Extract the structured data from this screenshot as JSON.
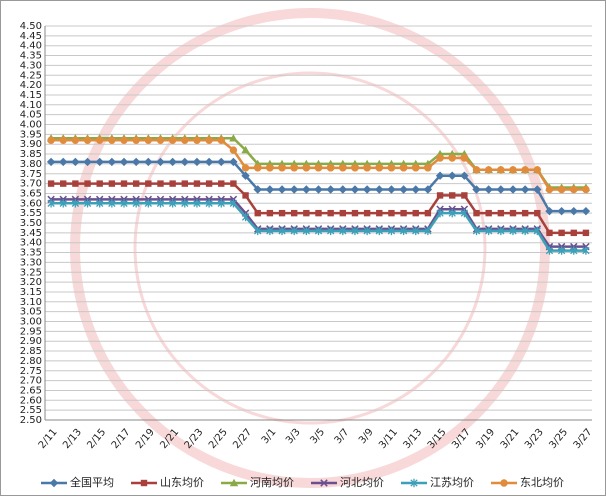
{
  "chart_data": {
    "type": "line",
    "categories": [
      "2/11",
      null,
      "2/13",
      null,
      "2/15",
      null,
      "2/17",
      null,
      "2/19",
      null,
      "2/21",
      null,
      "2/23",
      null,
      "2/25",
      null,
      "2/27",
      null,
      "3/1",
      null,
      "3/3",
      null,
      "3/5",
      null,
      "3/7",
      null,
      "3/9",
      null,
      "3/11",
      null,
      "3/13",
      null,
      "3/15",
      null,
      "3/17",
      null,
      "3/19",
      null,
      "3/21",
      null,
      "3/23",
      null,
      "3/25",
      null,
      "3/27"
    ],
    "series": [
      {
        "name": "全国平均",
        "color": "#4a78a8",
        "marker": "diamond",
        "values": [
          3.81,
          3.81,
          3.81,
          3.81,
          3.81,
          3.81,
          3.81,
          3.81,
          3.81,
          3.81,
          3.81,
          3.81,
          3.81,
          3.81,
          3.81,
          3.81,
          3.74,
          3.67,
          3.67,
          3.67,
          3.67,
          3.67,
          3.67,
          3.67,
          3.67,
          3.67,
          3.67,
          3.67,
          3.67,
          3.67,
          3.67,
          3.67,
          3.74,
          3.74,
          3.74,
          3.67,
          3.67,
          3.67,
          3.67,
          3.67,
          3.67,
          3.56,
          3.56,
          3.56,
          3.56
        ]
      },
      {
        "name": "山东均价",
        "color": "#a8403c",
        "marker": "square",
        "values": [
          3.7,
          3.7,
          3.7,
          3.7,
          3.7,
          3.7,
          3.7,
          3.7,
          3.7,
          3.7,
          3.7,
          3.7,
          3.7,
          3.7,
          3.7,
          3.7,
          3.64,
          3.55,
          3.55,
          3.55,
          3.55,
          3.55,
          3.55,
          3.55,
          3.55,
          3.55,
          3.55,
          3.55,
          3.55,
          3.55,
          3.55,
          3.55,
          3.64,
          3.64,
          3.64,
          3.55,
          3.55,
          3.55,
          3.55,
          3.55,
          3.55,
          3.45,
          3.45,
          3.45,
          3.45
        ]
      },
      {
        "name": "河南均价",
        "color": "#8aaa48",
        "marker": "triangle",
        "values": [
          3.93,
          3.93,
          3.93,
          3.93,
          3.93,
          3.93,
          3.93,
          3.93,
          3.93,
          3.93,
          3.93,
          3.93,
          3.93,
          3.93,
          3.93,
          3.93,
          3.87,
          3.8,
          3.8,
          3.8,
          3.8,
          3.8,
          3.8,
          3.8,
          3.8,
          3.8,
          3.8,
          3.8,
          3.8,
          3.8,
          3.8,
          3.8,
          3.85,
          3.85,
          3.85,
          3.77,
          3.77,
          3.77,
          3.77,
          3.77,
          3.77,
          3.68,
          3.68,
          3.68,
          3.68
        ]
      },
      {
        "name": "河北均价",
        "color": "#6a5090",
        "marker": "x",
        "values": [
          3.62,
          3.62,
          3.62,
          3.62,
          3.62,
          3.62,
          3.62,
          3.62,
          3.62,
          3.62,
          3.62,
          3.62,
          3.62,
          3.62,
          3.62,
          3.62,
          3.55,
          3.47,
          3.47,
          3.47,
          3.47,
          3.47,
          3.47,
          3.47,
          3.47,
          3.47,
          3.47,
          3.47,
          3.47,
          3.47,
          3.47,
          3.47,
          3.57,
          3.57,
          3.57,
          3.47,
          3.47,
          3.47,
          3.47,
          3.47,
          3.47,
          3.38,
          3.38,
          3.38,
          3.38
        ]
      },
      {
        "name": "江苏均价",
        "color": "#3ca0b8",
        "marker": "star",
        "values": [
          3.6,
          3.6,
          3.6,
          3.6,
          3.6,
          3.6,
          3.6,
          3.6,
          3.6,
          3.6,
          3.6,
          3.6,
          3.6,
          3.6,
          3.6,
          3.6,
          3.53,
          3.46,
          3.46,
          3.46,
          3.46,
          3.46,
          3.46,
          3.46,
          3.46,
          3.46,
          3.46,
          3.46,
          3.46,
          3.46,
          3.46,
          3.46,
          3.55,
          3.55,
          3.55,
          3.46,
          3.46,
          3.46,
          3.46,
          3.46,
          3.46,
          3.36,
          3.36,
          3.36,
          3.36
        ]
      },
      {
        "name": "东北均价",
        "color": "#e08c3c",
        "marker": "circle",
        "values": [
          3.92,
          3.92,
          3.92,
          3.92,
          3.92,
          3.92,
          3.92,
          3.92,
          3.92,
          3.92,
          3.92,
          3.92,
          3.92,
          3.92,
          3.92,
          3.87,
          3.78,
          3.78,
          3.78,
          3.78,
          3.78,
          3.78,
          3.78,
          3.78,
          3.78,
          3.78,
          3.78,
          3.78,
          3.78,
          3.78,
          3.78,
          3.78,
          3.83,
          3.83,
          3.83,
          3.77,
          3.77,
          3.77,
          3.77,
          3.77,
          3.77,
          3.67,
          3.67,
          3.67,
          3.67
        ]
      }
    ],
    "ylim": [
      2.5,
      4.5
    ],
    "yticks": [
      {
        "value": 2.5,
        "label": "2.50"
      },
      {
        "value": 2.55,
        "label": "2.55"
      },
      {
        "value": 2.6,
        "label": "2.60"
      },
      {
        "value": 2.65,
        "label": "2.65"
      },
      {
        "value": 2.7,
        "label": "2.70"
      },
      {
        "value": 2.75,
        "label": "2.75"
      },
      {
        "value": 2.8,
        "label": "2.80"
      },
      {
        "value": 2.85,
        "label": "2.85"
      },
      {
        "value": 2.9,
        "label": "2.90"
      },
      {
        "value": 2.95,
        "label": "2.95"
      },
      {
        "value": 3.0,
        "label": "3.00"
      },
      {
        "value": 3.05,
        "label": "3.05"
      },
      {
        "value": 3.1,
        "label": "3.10"
      },
      {
        "value": 3.15,
        "label": "3.15"
      },
      {
        "value": 3.2,
        "label": "3.20"
      },
      {
        "value": 3.25,
        "label": "3.25"
      },
      {
        "value": 3.3,
        "label": "3.30"
      },
      {
        "value": 3.35,
        "label": "3.35"
      },
      {
        "value": 3.4,
        "label": "3.40"
      },
      {
        "value": 3.45,
        "label": "3.45"
      },
      {
        "value": 3.5,
        "label": "3.50"
      },
      {
        "value": 3.55,
        "label": "3.55"
      },
      {
        "value": 3.6,
        "label": "3.60"
      },
      {
        "value": 3.65,
        "label": "3.65"
      },
      {
        "value": 3.7,
        "label": "3.70"
      },
      {
        "value": 3.75,
        "label": "3.75"
      },
      {
        "value": 3.8,
        "label": "3.80"
      },
      {
        "value": 3.85,
        "label": "3.85"
      },
      {
        "value": 3.9,
        "label": "3.90"
      },
      {
        "value": 3.95,
        "label": "3.95"
      },
      {
        "value": 4.0,
        "label": "4.00"
      },
      {
        "value": 4.05,
        "label": "4.05"
      },
      {
        "value": 4.1,
        "label": "4.10"
      },
      {
        "value": 4.15,
        "label": "4.15"
      },
      {
        "value": 4.2,
        "label": "4.20"
      },
      {
        "value": 4.25,
        "label": "4.25"
      },
      {
        "value": 4.3,
        "label": "4.30"
      },
      {
        "value": 4.35,
        "label": "4.35"
      },
      {
        "value": 4.4,
        "label": "4.40"
      },
      {
        "value": 4.45,
        "label": "4.45"
      },
      {
        "value": 4.5,
        "label": "4.50"
      }
    ],
    "grid": true,
    "legend": "bottom"
  }
}
